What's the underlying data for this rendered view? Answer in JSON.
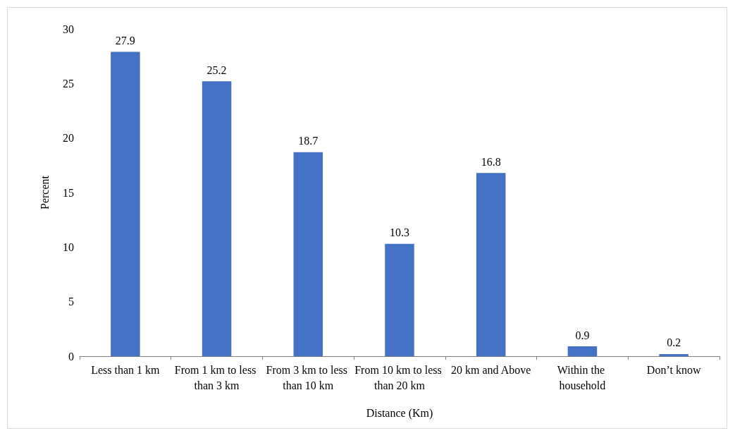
{
  "chart_data": {
    "type": "bar",
    "xlabel": "Distance (Km)",
    "ylabel": "Percent",
    "categories": [
      "Less than 1 km",
      "From 1 km to less than 3 km",
      "From 3 km to less than 10 km",
      "From 10 km to less than 20 km",
      "20 km and Above",
      "Within the household",
      "Don’t know"
    ],
    "values": [
      27.9,
      25.2,
      18.7,
      10.3,
      16.8,
      0.9,
      0.2
    ],
    "color": "#4472c4",
    "ylim": [
      0,
      30
    ],
    "yticks": [
      0,
      5,
      10,
      15,
      20,
      25,
      30
    ],
    "grid": false,
    "data_labels": true
  }
}
